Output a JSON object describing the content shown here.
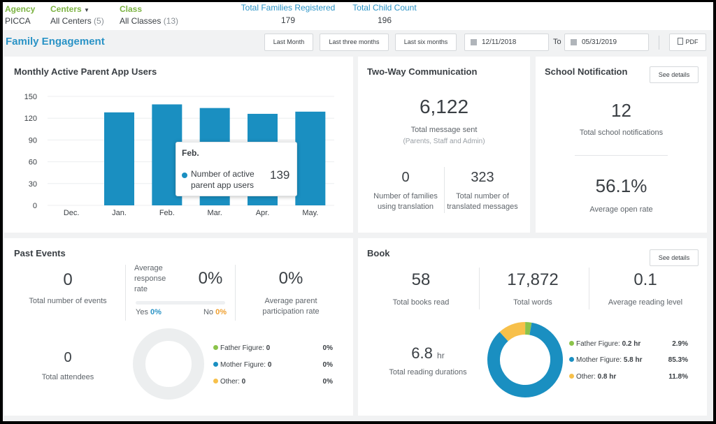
{
  "filters": {
    "agency": {
      "label": "Agency",
      "value": "PICCA"
    },
    "centers": {
      "label": "Centers",
      "value": "All Centers",
      "count": "(5)"
    },
    "class": {
      "label": "Class",
      "value": "All Classes",
      "count": "(13)"
    },
    "total_families": {
      "label": "Total Families Registered",
      "value": "179"
    },
    "total_children": {
      "label": "Total Child Count",
      "value": "196"
    }
  },
  "header": {
    "title": "Family Engagement",
    "last_month": "Last Month",
    "last_three": "Last three months",
    "last_six": "Last six months",
    "date_from": "12/11/2018",
    "to_label": "To",
    "date_to": "05/31/2019",
    "pdf": "PDF"
  },
  "parent_app": {
    "title": "Monthly Active Parent App Users",
    "tooltip": {
      "month": "Feb.",
      "label": "Number of active parent app users",
      "value": "139"
    }
  },
  "chart_data": {
    "type": "bar",
    "categories": [
      "Dec.",
      "Jan.",
      "Feb.",
      "Mar.",
      "Apr.",
      "May."
    ],
    "values": [
      0,
      128,
      139,
      134,
      126,
      129
    ],
    "yticks": [
      "0",
      "30",
      "60",
      "90",
      "120",
      "150"
    ],
    "ylim": [
      0,
      150
    ],
    "grid": true,
    "color": "#1a8fc1"
  },
  "two_way": {
    "title": "Two-Way Communication",
    "messages_value": "6,122",
    "messages_label": "Total message sent",
    "messages_sub": "(Parents, Staff and Admin)",
    "families_value": "0",
    "families_label_1": "Number of families",
    "families_label_2": "using translation",
    "translated_value": "323",
    "translated_label_1": "Total number of",
    "translated_label_2": "translated messages"
  },
  "school": {
    "title": "School Notification",
    "details": "See details",
    "notif_value": "12",
    "notif_label": "Total school notifications",
    "open_value": "56.1%",
    "open_label": "Average open rate"
  },
  "events": {
    "title": "Past Events",
    "total_value": "0",
    "total_label": "Total number of events",
    "response_label_1": "Average",
    "response_label_2": "response",
    "response_label_3": "rate",
    "response_value": "0%",
    "yes_label": "Yes",
    "yes_value": "0%",
    "no_label": "No",
    "no_value": "0%",
    "participation_value": "0%",
    "participation_label_1": "Average parent",
    "participation_label_2": "participation rate",
    "attendees_value": "0",
    "attendees_label": "Total attendees",
    "legend": [
      {
        "label": "Father Figure:",
        "value": "0",
        "pct": "0%",
        "color": "#8bc34a"
      },
      {
        "label": "Mother Figure:",
        "value": "0",
        "pct": "0%",
        "color": "#1a8fc1"
      },
      {
        "label": "Other:",
        "value": "0",
        "pct": "0%",
        "color": "#f7c04a"
      }
    ]
  },
  "book": {
    "title": "Book",
    "details": "See details",
    "books_value": "58",
    "books_label": "Total books read",
    "words_value": "17,872",
    "words_label": "Total words",
    "level_value": "0.1",
    "level_label": "Average reading level",
    "duration_value": "6.8",
    "duration_unit": "hr",
    "duration_label": "Total reading durations",
    "legend": [
      {
        "label": "Father Figure:",
        "value": "0.2 hr",
        "pct": "2.9%",
        "fraction": 0.029,
        "color": "#8bc34a"
      },
      {
        "label": "Mother Figure:",
        "value": "5.8 hr",
        "pct": "85.3%",
        "fraction": 0.853,
        "color": "#1a8fc1"
      },
      {
        "label": "Other:",
        "value": "0.8 hr",
        "pct": "11.8%",
        "fraction": 0.118,
        "color": "#f7c04a"
      }
    ]
  }
}
